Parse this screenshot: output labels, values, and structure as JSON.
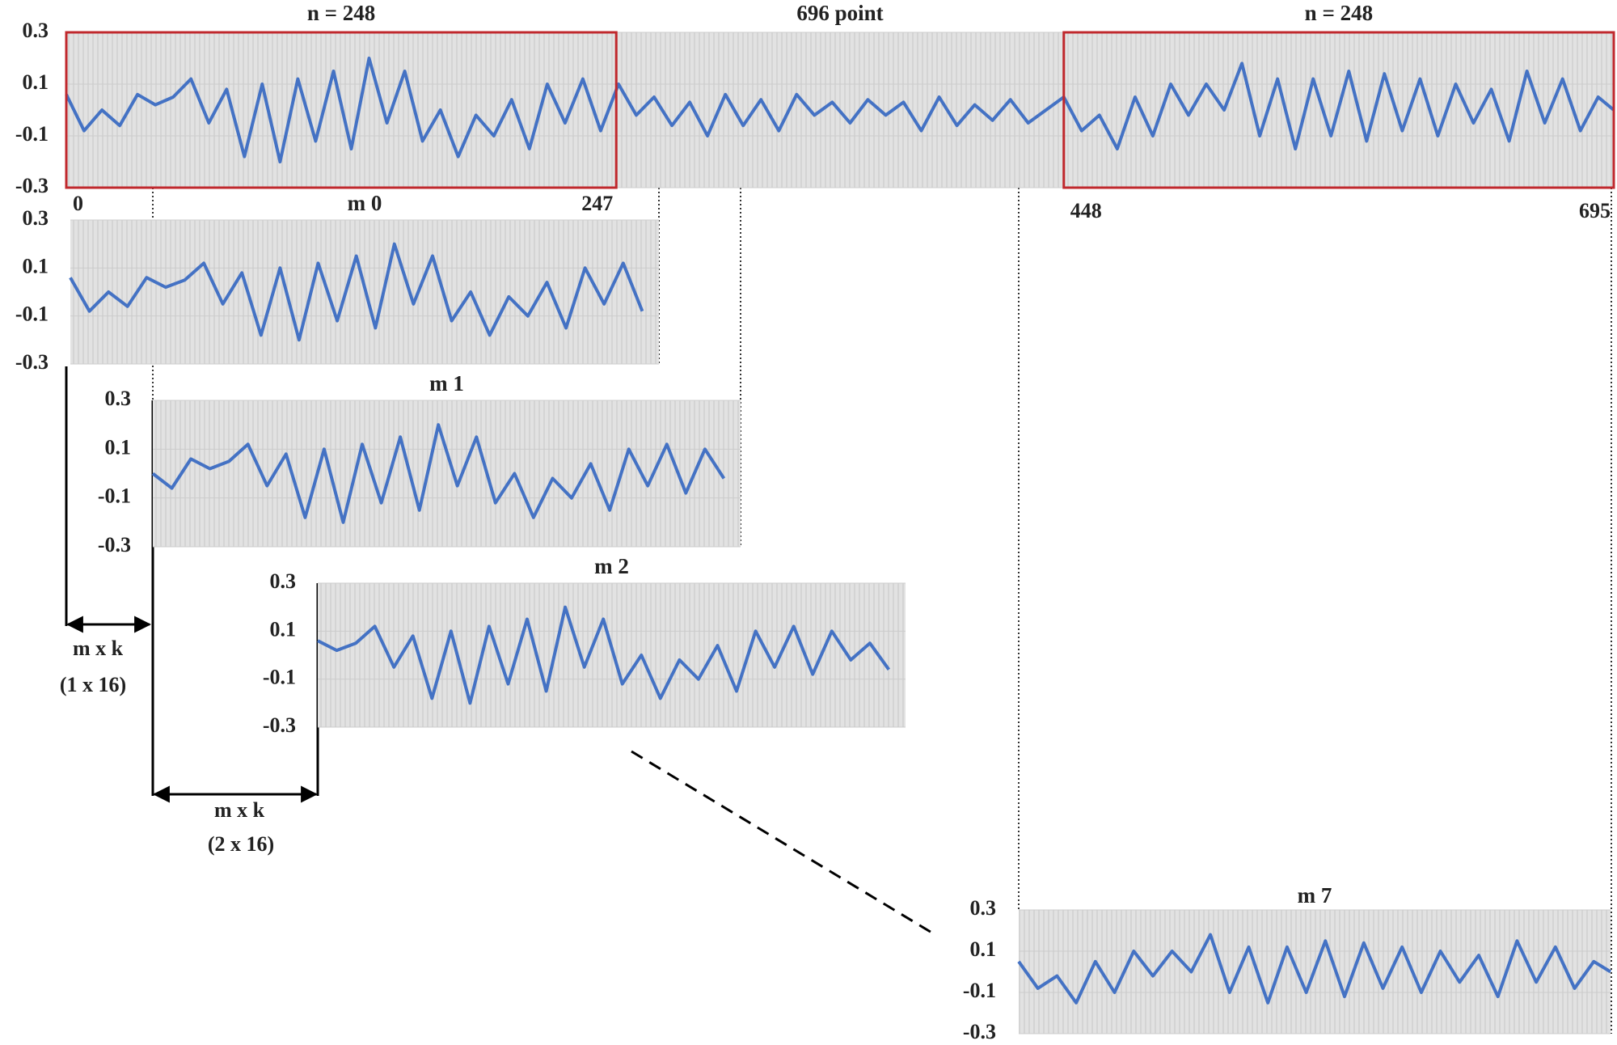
{
  "chart_data": [
    {
      "type": "line",
      "title": "696 point",
      "color": "#4472c4",
      "ylim": [
        -0.3,
        0.3
      ],
      "yticks": [
        0.3,
        0.1,
        -0.1,
        -0.3
      ],
      "xlim": [
        0,
        695
      ],
      "x": [
        0,
        8,
        16,
        24,
        32,
        40,
        48,
        56,
        64,
        72,
        80,
        88,
        96,
        104,
        112,
        120,
        128,
        136,
        144,
        152,
        160,
        168,
        176,
        184,
        192,
        200,
        208,
        216,
        224,
        232,
        240,
        248,
        256,
        264,
        272,
        280,
        288,
        296,
        304,
        312,
        320,
        328,
        336,
        344,
        352,
        360,
        368,
        376,
        384,
        392,
        400,
        408,
        416,
        424,
        432,
        440,
        448,
        456,
        464,
        472,
        480,
        488,
        496,
        504,
        512,
        520,
        528,
        536,
        544,
        552,
        560,
        568,
        576,
        584,
        592,
        600,
        608,
        616,
        624,
        632,
        640,
        648,
        656,
        664,
        672,
        680,
        688,
        695
      ],
      "values": [
        0.06,
        -0.08,
        0.0,
        -0.06,
        0.06,
        0.02,
        0.05,
        0.12,
        -0.05,
        0.08,
        -0.18,
        0.1,
        -0.2,
        0.12,
        -0.12,
        0.15,
        -0.15,
        0.2,
        -0.05,
        0.15,
        -0.12,
        0.0,
        -0.18,
        -0.02,
        -0.1,
        0.04,
        -0.15,
        0.1,
        -0.05,
        0.12,
        -0.08,
        0.1,
        -0.02,
        0.05,
        -0.06,
        0.03,
        -0.1,
        0.06,
        -0.06,
        0.04,
        -0.08,
        0.06,
        -0.02,
        0.03,
        -0.05,
        0.04,
        -0.02,
        0.03,
        -0.08,
        0.05,
        -0.06,
        0.02,
        -0.04,
        0.04,
        -0.05,
        0.0,
        0.05,
        -0.08,
        -0.02,
        -0.15,
        0.05,
        -0.1,
        0.1,
        -0.02,
        0.1,
        0.0,
        0.18,
        -0.1,
        0.12,
        -0.15,
        0.12,
        -0.1,
        0.15,
        -0.12,
        0.14,
        -0.08,
        0.12,
        -0.1,
        0.1,
        -0.05,
        0.08,
        -0.12,
        0.15,
        -0.05,
        0.12,
        -0.08,
        0.05,
        0.0
      ]
    },
    {
      "type": "line",
      "title": "m 0",
      "color": "#4472c4",
      "ylim": [
        -0.3,
        0.3
      ],
      "yticks": [
        0.3,
        0.1,
        -0.1,
        -0.3
      ],
      "xlim": [
        0,
        247
      ],
      "x": [
        0,
        8,
        16,
        24,
        32,
        40,
        48,
        56,
        64,
        72,
        80,
        88,
        96,
        104,
        112,
        120,
        128,
        136,
        144,
        152,
        160,
        168,
        176,
        184,
        192,
        200,
        208,
        216,
        224,
        232,
        240
      ],
      "values": [
        0.06,
        -0.08,
        0.0,
        -0.06,
        0.06,
        0.02,
        0.05,
        0.12,
        -0.05,
        0.08,
        -0.18,
        0.1,
        -0.2,
        0.12,
        -0.12,
        0.15,
        -0.15,
        0.2,
        -0.05,
        0.15,
        -0.12,
        0.0,
        -0.18,
        -0.02,
        -0.1,
        0.04,
        -0.15,
        0.1,
        -0.05,
        0.12,
        -0.08
      ]
    },
    {
      "type": "line",
      "title": "m 1",
      "color": "#4472c4",
      "ylim": [
        -0.3,
        0.3
      ],
      "yticks": [
        0.3,
        0.1,
        -0.1,
        -0.3
      ],
      "xlim": [
        16,
        263
      ],
      "x": [
        16,
        24,
        32,
        40,
        48,
        56,
        64,
        72,
        80,
        88,
        96,
        104,
        112,
        120,
        128,
        136,
        144,
        152,
        160,
        168,
        176,
        184,
        192,
        200,
        208,
        216,
        224,
        232,
        240,
        248,
        256
      ],
      "values": [
        0.0,
        -0.06,
        0.06,
        0.02,
        0.05,
        0.12,
        -0.05,
        0.08,
        -0.18,
        0.1,
        -0.2,
        0.12,
        -0.12,
        0.15,
        -0.15,
        0.2,
        -0.05,
        0.15,
        -0.12,
        0.0,
        -0.18,
        -0.02,
        -0.1,
        0.04,
        -0.15,
        0.1,
        -0.05,
        0.12,
        -0.08,
        0.1,
        -0.02
      ]
    },
    {
      "type": "line",
      "title": "m 2",
      "color": "#4472c4",
      "ylim": [
        -0.3,
        0.3
      ],
      "yticks": [
        0.3,
        0.1,
        -0.1,
        -0.3
      ],
      "xlim": [
        32,
        279
      ],
      "x": [
        32,
        40,
        48,
        56,
        64,
        72,
        80,
        88,
        96,
        104,
        112,
        120,
        128,
        136,
        144,
        152,
        160,
        168,
        176,
        184,
        192,
        200,
        208,
        216,
        224,
        232,
        240,
        248,
        256,
        264,
        272
      ],
      "values": [
        0.06,
        0.02,
        0.05,
        0.12,
        -0.05,
        0.08,
        -0.18,
        0.1,
        -0.2,
        0.12,
        -0.12,
        0.15,
        -0.15,
        0.2,
        -0.05,
        0.15,
        -0.12,
        0.0,
        -0.18,
        -0.02,
        -0.1,
        0.04,
        -0.15,
        0.1,
        -0.05,
        0.12,
        -0.08,
        0.1,
        -0.02,
        0.05,
        -0.06
      ]
    },
    {
      "type": "line",
      "title": "m 7",
      "color": "#4472c4",
      "ylim": [
        -0.3,
        0.3
      ],
      "yticks": [
        0.3,
        0.1,
        -0.1,
        -0.3
      ],
      "xlim": [
        448,
        695
      ],
      "x": [
        448,
        456,
        464,
        472,
        480,
        488,
        496,
        504,
        512,
        520,
        528,
        536,
        544,
        552,
        560,
        568,
        576,
        584,
        592,
        600,
        608,
        616,
        624,
        632,
        640,
        648,
        656,
        664,
        672,
        680,
        688,
        695
      ],
      "values": [
        0.05,
        -0.08,
        -0.02,
        -0.15,
        0.05,
        -0.1,
        0.1,
        -0.02,
        0.1,
        0.0,
        0.18,
        -0.1,
        0.12,
        -0.15,
        0.12,
        -0.1,
        0.15,
        -0.12,
        0.14,
        -0.08,
        0.12,
        -0.1,
        0.1,
        -0.05,
        0.08,
        -0.12,
        0.15,
        -0.05,
        0.12,
        -0.08,
        0.05,
        0.0
      ]
    }
  ],
  "ranges": [
    {
      "label": "n = 248",
      "start": 0,
      "end": 247
    },
    {
      "label": "n = 248",
      "start": 448,
      "end": 695
    }
  ],
  "shifts": [
    {
      "label": "m x k",
      "detail": "(1 x 16)"
    },
    {
      "label": "m x k",
      "detail": "(2 x 16)"
    }
  ]
}
